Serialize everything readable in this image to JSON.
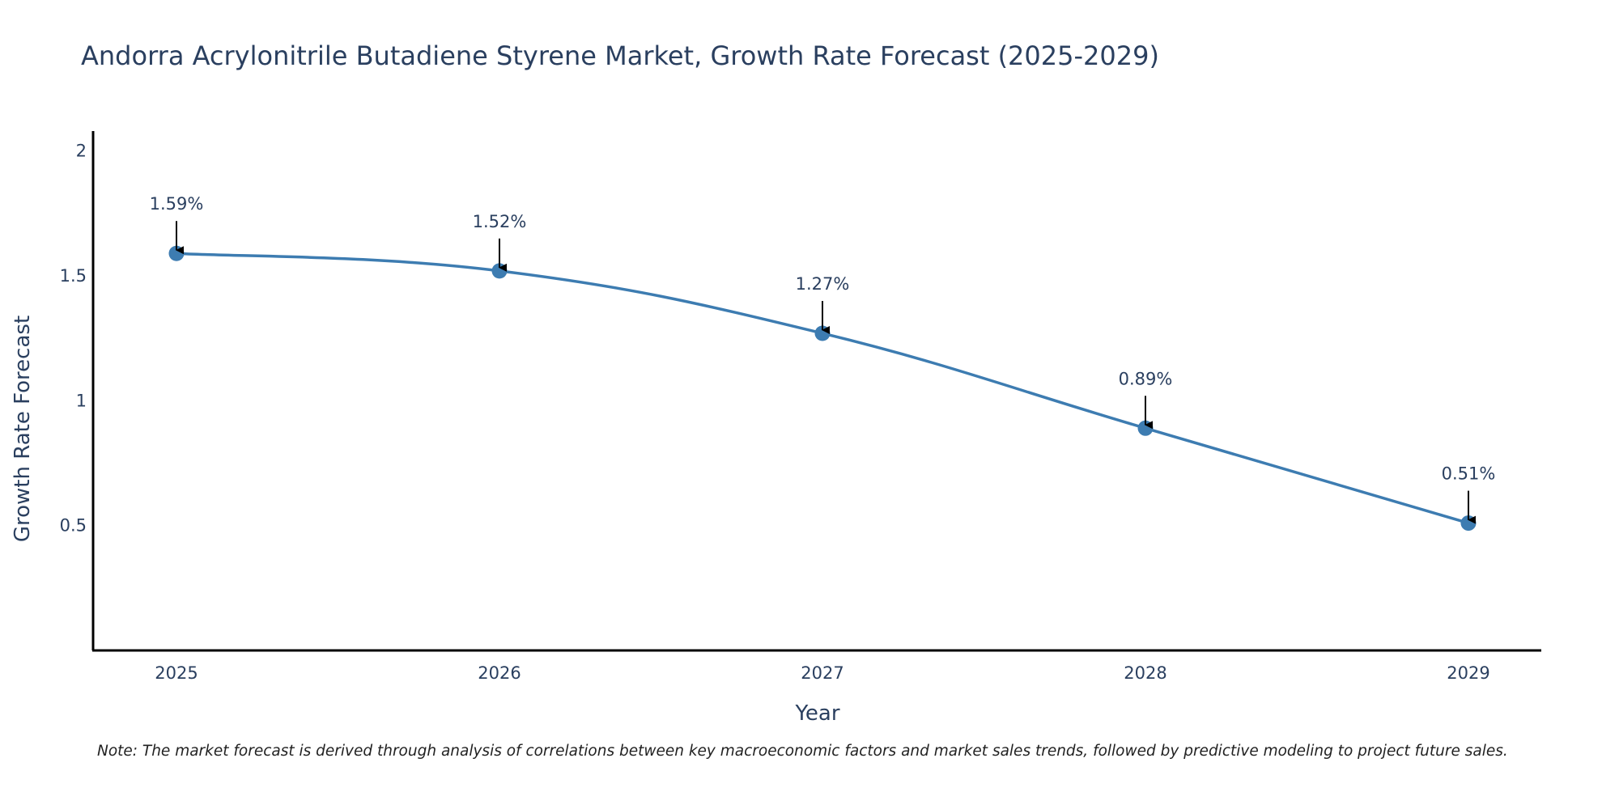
{
  "chart_data": {
    "type": "line",
    "title": "Andorra Acrylonitrile Butadiene Styrene Market, Growth Rate Forecast (2025-2029)",
    "xlabel": "Year",
    "ylabel": "Growth Rate Forecast",
    "categories": [
      "2025",
      "2026",
      "2027",
      "2028",
      "2029"
    ],
    "values": [
      1.59,
      1.52,
      1.27,
      0.89,
      0.51
    ],
    "data_labels": [
      "1.59%",
      "1.52%",
      "1.27%",
      "0.89%",
      "0.51%"
    ],
    "yticks": [
      0.5,
      1,
      1.5,
      2
    ],
    "ytick_labels": [
      "0.5",
      "1",
      "1.5",
      "2"
    ],
    "ylim": [
      0,
      2.08
    ],
    "grid": false,
    "legend": "none",
    "line_color": "#3d7cb1",
    "marker_color": "#3d7cb1",
    "arrow_color": "#000000",
    "axis_color": "#000000"
  },
  "note": "Note: The market forecast is derived through analysis of correlations between key macroeconomic factors and market sales trends, followed by predictive modeling to project future sales."
}
